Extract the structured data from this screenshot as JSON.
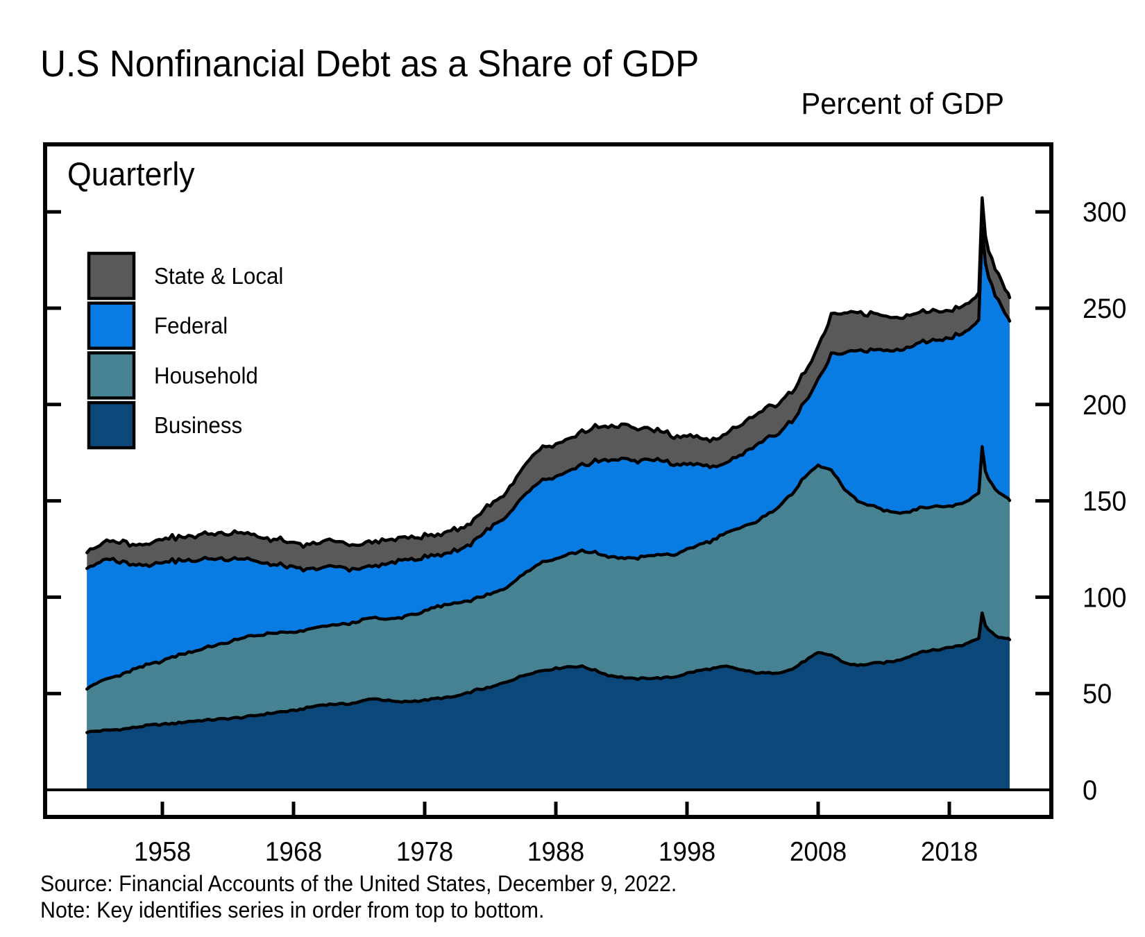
{
  "title": "U.S Nonfinancial Debt as a Share of GDP",
  "y_axis_title": "Percent of GDP",
  "frequency_label": "Quarterly",
  "source_line": "Source: Financial Accounts of the United States, December 9, 2022.",
  "note_line": "Note: Key identifies series in order from top to bottom.",
  "colors": {
    "state_local": "#595959",
    "federal": "#087CE2",
    "household": "#468291",
    "business": "#0B4778",
    "outline": "#000000",
    "frame": "#000000"
  },
  "legend": [
    {
      "label": "State & Local",
      "key": "state_local"
    },
    {
      "label": "Federal",
      "key": "federal"
    },
    {
      "label": "Household",
      "key": "household"
    },
    {
      "label": "Business",
      "key": "business"
    }
  ],
  "chart_data": {
    "type": "area",
    "stacked": true,
    "title": "U.S Nonfinancial Debt as a Share of GDP",
    "ylabel": "Percent of GDP",
    "frequency": "Quarterly",
    "legend_position": "upper-left-inside",
    "grid": false,
    "xlim": [
      1949,
      2026
    ],
    "ylim": [
      0,
      335
    ],
    "x_ticks": [
      1958,
      1968,
      1978,
      1988,
      1998,
      2008,
      2018
    ],
    "y_ticks_marks": [
      50,
      100,
      150,
      200,
      250,
      300
    ],
    "y_tick_labels": [
      0,
      50,
      100,
      150,
      200,
      250,
      300
    ],
    "x": [
      1952.25,
      1953,
      1954,
      1955,
      1956,
      1957,
      1958,
      1959,
      1960,
      1961,
      1962,
      1963,
      1964,
      1965,
      1966,
      1967,
      1968,
      1969,
      1970,
      1971,
      1972,
      1973,
      1974,
      1975,
      1976,
      1977,
      1978,
      1979,
      1980,
      1981,
      1982,
      1983,
      1984,
      1985,
      1986,
      1987,
      1988,
      1989,
      1990,
      1991,
      1992,
      1993,
      1994,
      1995,
      1996,
      1997,
      1998,
      1999,
      2000,
      2001,
      2002,
      2003,
      2004,
      2005,
      2006,
      2007,
      2008,
      2009,
      2010,
      2011,
      2012,
      2013,
      2014,
      2015,
      2016,
      2017,
      2018,
      2019,
      2020.25,
      2020.5,
      2020.75,
      2021,
      2021.25,
      2021.5,
      2021.75,
      2022,
      2022.25,
      2022.6
    ],
    "series": [
      {
        "name": "Business",
        "key": "business",
        "values": [
          30,
          30.5,
          31,
          31.5,
          32.5,
          33.5,
          34,
          34.5,
          35.5,
          36,
          36.5,
          37,
          37.5,
          38.5,
          39.5,
          40.5,
          41,
          42.5,
          44,
          44.5,
          44.5,
          45.5,
          47.5,
          46.5,
          45.5,
          46,
          46.5,
          47.5,
          48,
          49.5,
          52,
          53,
          55.5,
          58,
          60.5,
          62,
          63,
          64,
          64,
          62,
          59.5,
          58.5,
          57.5,
          58,
          58,
          58.5,
          60.5,
          62,
          63,
          64,
          62.5,
          61,
          60.5,
          61,
          62.5,
          67,
          71,
          70,
          66,
          64.5,
          65.5,
          66,
          67,
          69.5,
          72,
          72.5,
          74,
          75,
          79,
          92,
          85.5,
          83,
          81.5,
          80.5,
          79.5,
          79,
          78.5,
          78
        ]
      },
      {
        "name": "Household",
        "key": "household",
        "values": [
          23,
          25,
          27,
          28.5,
          30.5,
          31.5,
          33,
          35,
          36,
          37,
          38.5,
          39.5,
          41,
          41.5,
          41.5,
          41,
          40.5,
          40.5,
          40.5,
          41,
          41.5,
          42,
          42,
          42,
          43.5,
          45,
          46,
          47.5,
          48.5,
          48,
          47.5,
          48.5,
          48.5,
          51.5,
          54,
          56.5,
          57,
          58.5,
          60,
          61,
          61.5,
          62,
          62.5,
          63.5,
          64,
          63.5,
          64,
          65.5,
          66.5,
          69.5,
          73,
          77.5,
          81.5,
          86.5,
          91,
          95.5,
          97,
          96,
          90,
          85.5,
          82,
          79,
          77,
          75,
          75,
          74.5,
          73.5,
          73.5,
          75,
          86,
          80,
          78,
          77,
          76,
          75,
          74,
          73.5,
          72.5
        ]
      },
      {
        "name": "Federal",
        "key": "federal",
        "values": [
          63,
          61.5,
          62,
          58,
          54,
          51.5,
          51.5,
          49.5,
          47.5,
          46.5,
          45,
          43.5,
          41.5,
          39,
          36,
          35,
          33.5,
          31,
          30.5,
          30.5,
          29,
          27,
          26.5,
          28.5,
          29.5,
          29,
          28,
          26.5,
          27,
          28,
          31,
          34.5,
          36,
          38.5,
          41.5,
          42,
          42.5,
          42.5,
          44.5,
          47.5,
          50,
          51.5,
          50.5,
          50,
          49,
          47,
          44.5,
          41.5,
          37.5,
          36.5,
          37.5,
          39.5,
          39.5,
          38.5,
          38,
          38.5,
          44,
          60,
          70,
          78.5,
          80.5,
          83.5,
          84.5,
          85.5,
          86,
          86.5,
          87.5,
          88.5,
          89.5,
          113,
          108,
          105,
          102.5,
          101,
          99.5,
          97.5,
          95.5,
          93.5
        ]
      },
      {
        "name": "State & Local",
        "key": "state_local",
        "values": [
          8.5,
          9,
          9.5,
          10.5,
          10.5,
          11,
          12,
          12,
          12.5,
          13,
          13,
          13.5,
          13.5,
          13.5,
          13,
          13,
          12.5,
          12.5,
          13.5,
          13.5,
          13,
          12.5,
          12.5,
          12.5,
          12,
          11.5,
          11,
          10.5,
          11,
          10.5,
          11.5,
          12,
          12.5,
          14,
          16,
          17,
          17,
          16.5,
          17,
          18,
          17.5,
          17.5,
          17,
          16,
          15,
          14.5,
          14.5,
          14,
          14,
          15,
          15.5,
          16,
          16,
          15.5,
          15.5,
          15.5,
          17,
          20.5,
          20.5,
          19.5,
          19,
          18,
          17,
          16.5,
          15.5,
          15,
          14.5,
          14,
          14,
          15.5,
          14.5,
          14,
          13.8,
          13.5,
          13.3,
          13,
          12.8,
          12.5
        ]
      }
    ]
  }
}
